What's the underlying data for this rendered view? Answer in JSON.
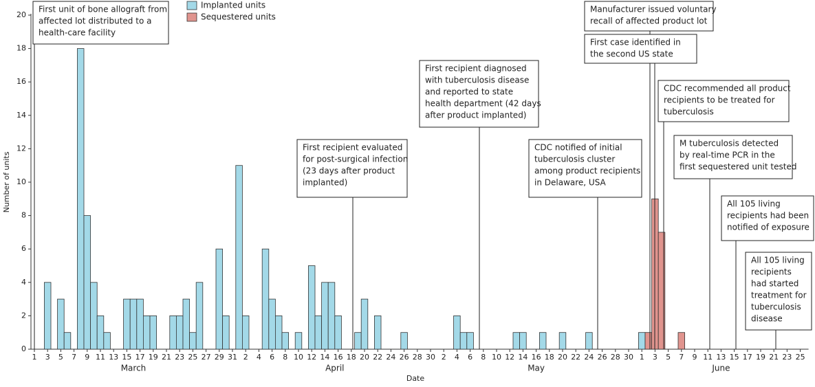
{
  "chart_data": {
    "type": "bar",
    "y_label": "Number of units",
    "x_label": "Date",
    "x_groups": [
      "March",
      "April",
      "May",
      "June"
    ],
    "categories": [
      "1",
      null,
      "3",
      null,
      "5",
      null,
      "7",
      null,
      "9",
      null,
      "11",
      null,
      "13",
      null,
      "15",
      null,
      "17",
      null,
      "19",
      null,
      "21",
      null,
      "23",
      null,
      "25",
      null,
      "27",
      null,
      "29",
      null,
      "31",
      null,
      "2",
      null,
      "4",
      null,
      "6",
      null,
      "8",
      null,
      "10",
      null,
      "12",
      null,
      "14",
      null,
      "16",
      null,
      "18",
      null,
      "20",
      null,
      "22",
      null,
      "24",
      null,
      "26",
      null,
      "28",
      null,
      "30",
      null,
      "2",
      null,
      "4",
      null,
      "6",
      null,
      "8",
      null,
      "10",
      null,
      "12",
      null,
      "14",
      null,
      "16",
      null,
      "18",
      null,
      "20",
      null,
      "22",
      null,
      "24",
      null,
      "26",
      null,
      "28",
      null,
      "30",
      null,
      "1",
      null,
      "3",
      null,
      "5",
      null,
      "7",
      null,
      "9",
      null,
      "11",
      null,
      "13",
      null,
      "15",
      null,
      "17",
      null,
      "19",
      null,
      "21",
      null,
      "23",
      null,
      "25"
    ],
    "series": [
      {
        "name": "Implanted units",
        "color": "#a3d9e8",
        "values": [
          0,
          0,
          4,
          0,
          3,
          1,
          0,
          18,
          8,
          4,
          2,
          1,
          0,
          0,
          3,
          3,
          3,
          2,
          2,
          0,
          0,
          2,
          2,
          3,
          1,
          4,
          0,
          0,
          6,
          2,
          0,
          11,
          2,
          0,
          0,
          6,
          3,
          2,
          1,
          0,
          1,
          0,
          5,
          2,
          4,
          4,
          2,
          0,
          0,
          1,
          3,
          0,
          2,
          0,
          0,
          0,
          1,
          0,
          0,
          0,
          0,
          0,
          0,
          0,
          2,
          1,
          1,
          0,
          0,
          0,
          0,
          0,
          0,
          1,
          1,
          0,
          0,
          1,
          0,
          0,
          1,
          0,
          0,
          0,
          1,
          0,
          0,
          0,
          0,
          0,
          0,
          0,
          1,
          0,
          0,
          0,
          0,
          0,
          0,
          0,
          0,
          0,
          0,
          0,
          0,
          0,
          0,
          0,
          0,
          0,
          0,
          0,
          0,
          0,
          0,
          0,
          0
        ]
      },
      {
        "name": "Sequestered units",
        "color": "#e0948e",
        "values": [
          0,
          0,
          0,
          0,
          0,
          0,
          0,
          0,
          0,
          0,
          0,
          0,
          0,
          0,
          0,
          0,
          0,
          0,
          0,
          0,
          0,
          0,
          0,
          0,
          0,
          0,
          0,
          0,
          0,
          0,
          0,
          0,
          0,
          0,
          0,
          0,
          0,
          0,
          0,
          0,
          0,
          0,
          0,
          0,
          0,
          0,
          0,
          0,
          0,
          0,
          0,
          0,
          0,
          0,
          0,
          0,
          0,
          0,
          0,
          0,
          0,
          0,
          0,
          0,
          0,
          0,
          0,
          0,
          0,
          0,
          0,
          0,
          0,
          0,
          0,
          0,
          0,
          0,
          0,
          0,
          0,
          0,
          0,
          0,
          0,
          0,
          0,
          0,
          0,
          0,
          0,
          0,
          0,
          1,
          9,
          7,
          0,
          0,
          1,
          0,
          0,
          0,
          0,
          0,
          0,
          0,
          0,
          0,
          0,
          0,
          0,
          0,
          0,
          0,
          0,
          0,
          0
        ]
      }
    ],
    "ylim": [
      0,
      20
    ],
    "yticks": [
      0,
      2,
      4,
      6,
      8,
      10,
      12,
      14,
      16,
      18,
      20
    ],
    "annotations": [
      [
        "First unit of bone allograft from",
        "affected lot distributed to a",
        "health-care facility"
      ],
      [
        "First recipient evaluated",
        "for post-surgical infection",
        "(23 days after product",
        "implanted)"
      ],
      [
        "First recipient diagnosed",
        "with tuberculosis disease",
        "and reported to state",
        "health department (42 days",
        "after product implanted)"
      ],
      [
        "CDC notified of initial",
        "tuberculosis cluster",
        "among product recipients",
        "in Delaware, USA"
      ],
      [
        "Manufacturer issued voluntary",
        "recall of affected product lot"
      ],
      [
        "First case identified in",
        "the second US state"
      ],
      [
        "CDC recommended all product",
        "recipients to be treated for",
        "tuberculosis"
      ],
      [
        "M tuberculosis detected",
        "by real-time PCR in the",
        "first sequestered unit tested"
      ],
      [
        "All 105 living",
        "recipients had been",
        "notified of exposure"
      ],
      [
        "All 105 living",
        "recipients",
        "had started",
        "treatment for",
        "tuberculosis",
        "disease"
      ]
    ]
  }
}
